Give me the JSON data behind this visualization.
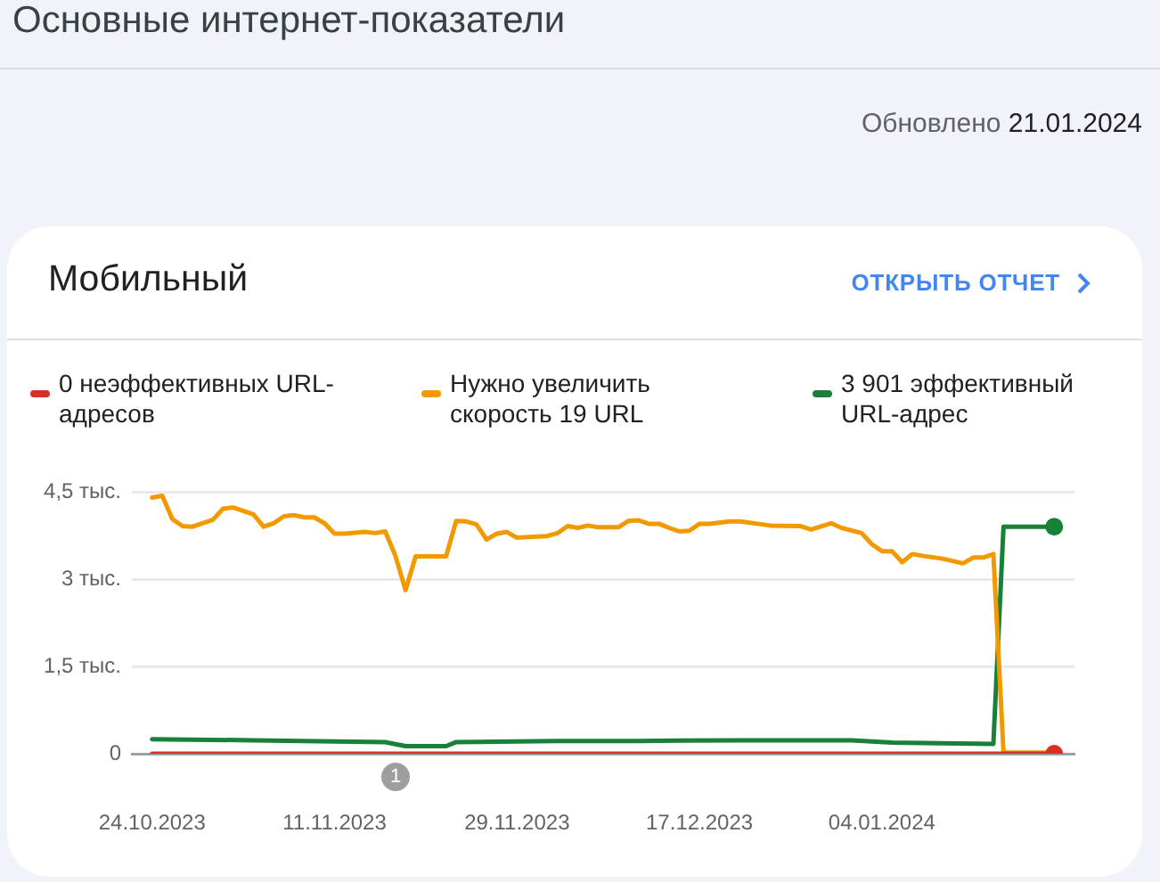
{
  "chart_data": {
    "type": "line",
    "title": "Основные интернет-показатели",
    "subtitle": "Мобильный",
    "annotations": [
      "Обновлено 21.01.2024",
      "ОТКРЫТЬ ОТЧЕТ",
      "1"
    ],
    "xlim": [
      "2023-10-22",
      "2024-01-23"
    ],
    "xticks": [
      {
        "value": "2023-10-24",
        "label": "24.10.2023"
      },
      {
        "value": "2023-11-11",
        "label": "11.11.2023"
      },
      {
        "value": "2023-11-29",
        "label": "29.11.2023"
      },
      {
        "value": "2023-12-17",
        "label": "17.12.2023"
      },
      {
        "value": "2024-01-04",
        "label": "04.01.2024"
      }
    ],
    "ylim": [
      0,
      4.5
    ],
    "yticks": [
      0,
      {
        "value": 1.5,
        "label": "1,5 тыс."
      },
      {
        "value": 3,
        "label": "3 тыс."
      },
      {
        "value": 4.5,
        "label": "4,5 тыс."
      }
    ],
    "grid": "y",
    "legend": "top",
    "series": [
      {
        "name": "0 неэффективных URL-адресов",
        "color": "#d93025",
        "x": [
          "2023-10-24",
          "2024-01-21"
        ],
        "values": [
          0,
          0
        ]
      },
      {
        "name": "Нужно увеличить скорость 19 URL",
        "color": "#f29900",
        "x": [
          "2023-10-24",
          "2023-10-25",
          "2023-10-26",
          "2023-10-27",
          "2023-10-28",
          "2023-10-30",
          "2023-10-31",
          "2023-11-01",
          "2023-11-03",
          "2023-11-04",
          "2023-11-05",
          "2023-11-06",
          "2023-11-07",
          "2023-11-08",
          "2023-11-09",
          "2023-11-10",
          "2023-11-11",
          "2023-11-12",
          "2023-11-14",
          "2023-11-15",
          "2023-11-16",
          "2023-11-17",
          "2023-11-18",
          "2023-11-19",
          "2023-11-22",
          "2023-11-23",
          "2023-11-24",
          "2023-11-25",
          "2023-11-26",
          "2023-11-27",
          "2023-11-28",
          "2023-11-29",
          "2023-12-01",
          "2023-12-02",
          "2023-12-03",
          "2023-12-04",
          "2023-12-05",
          "2023-12-06",
          "2023-12-07",
          "2023-12-09",
          "2023-12-10",
          "2023-12-11",
          "2023-12-12",
          "2023-12-13",
          "2023-12-14",
          "2023-12-15",
          "2023-12-16",
          "2023-12-17",
          "2023-12-18",
          "2023-12-20",
          "2023-12-21",
          "2023-12-24",
          "2023-12-27",
          "2023-12-28",
          "2023-12-30",
          "2023-12-31",
          "2024-01-02",
          "2024-01-03",
          "2024-01-04",
          "2024-01-05",
          "2024-01-06",
          "2024-01-07",
          "2024-01-08",
          "2024-01-10",
          "2024-01-12",
          "2024-01-13",
          "2024-01-14",
          "2024-01-15",
          "2024-01-16",
          "2024-01-21"
        ],
        "values": [
          4.4,
          4.43,
          4.03,
          3.91,
          3.9,
          4.02,
          4.21,
          4.23,
          4.11,
          3.9,
          3.96,
          4.08,
          4.1,
          4.06,
          4.06,
          3.96,
          3.78,
          3.78,
          3.81,
          3.79,
          3.82,
          3.4,
          2.81,
          3.39,
          3.39,
          4,
          3.99,
          3.94,
          3.68,
          3.78,
          3.81,
          3.71,
          3.73,
          3.74,
          3.79,
          3.91,
          3.88,
          3.92,
          3.89,
          3.89,
          4,
          4.01,
          3.95,
          3.95,
          3.88,
          3.82,
          3.83,
          3.95,
          3.95,
          3.99,
          3.99,
          3.92,
          3.91,
          3.85,
          3.96,
          3.88,
          3.79,
          3.6,
          3.48,
          3.48,
          3.29,
          3.43,
          3.4,
          3.35,
          3.27,
          3.37,
          3.37,
          3.43,
          0.02,
          0.02
        ]
      },
      {
        "name": "3 901 эффективный URL-адрес",
        "color": "#188038",
        "x": [
          "2023-10-24",
          "2023-11-03",
          "2023-11-11",
          "2023-11-16",
          "2023-11-18",
          "2023-11-22",
          "2023-11-23",
          "2023-12-03",
          "2023-12-11",
          "2023-12-21",
          "2024-01-01",
          "2024-01-05",
          "2024-01-15",
          "2024-01-16",
          "2024-01-21"
        ],
        "values": [
          0.25,
          0.23,
          0.21,
          0.2,
          0.13,
          0.13,
          0.2,
          0.22,
          0.22,
          0.23,
          0.23,
          0.19,
          0.17,
          3.9,
          3.9
        ]
      },
      {
        "type": "scatter",
        "color": "#188038",
        "marker": "circle",
        "x": [
          "2024-01-21"
        ],
        "values": [
          3.9
        ]
      },
      {
        "type": "scatter",
        "color": "#d93025",
        "marker": "circle",
        "x": [
          "2024-01-21"
        ],
        "values": [
          0
        ]
      }
    ]
  }
}
